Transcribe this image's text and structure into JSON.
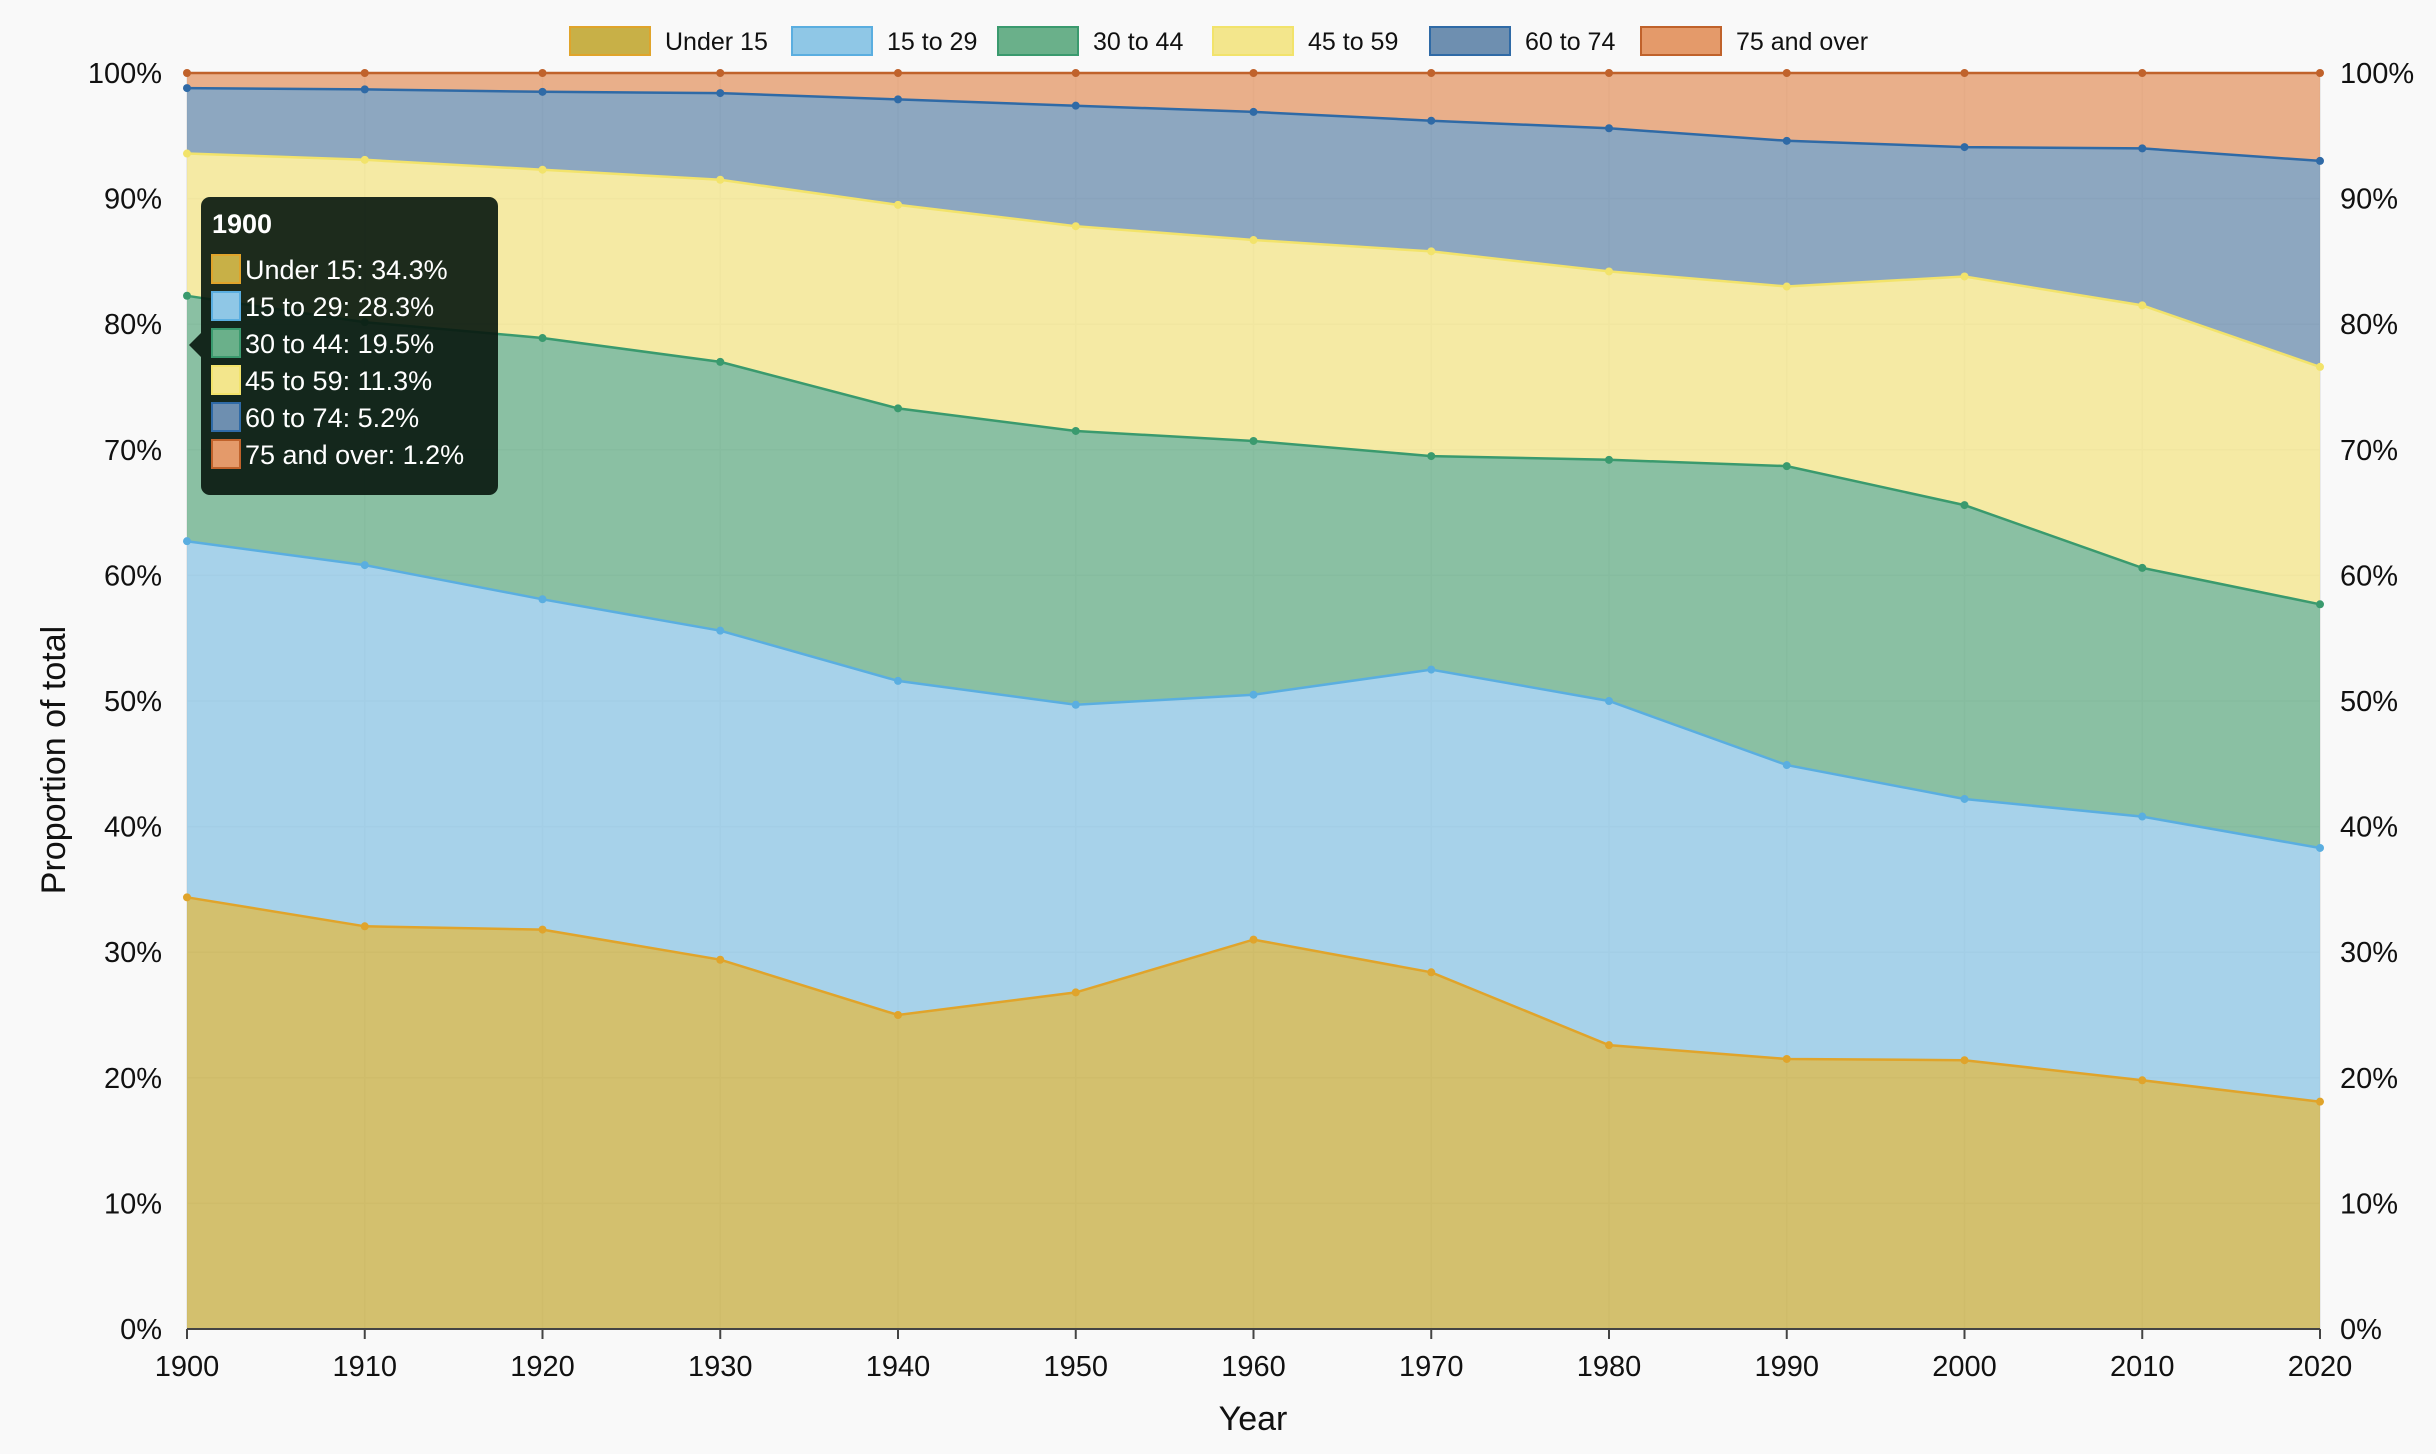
{
  "chart_data": {
    "type": "area",
    "stacked": true,
    "normalized": true,
    "x": [
      1900,
      1910,
      1920,
      1930,
      1940,
      1950,
      1960,
      1970,
      1980,
      1990,
      2000,
      2010,
      2020
    ],
    "series": [
      {
        "name": "Under 15",
        "color": "#e0a42b",
        "fill": "#c8b047",
        "values": [
          34.3,
          32.0,
          31.8,
          29.4,
          25.0,
          26.8,
          31.0,
          28.4,
          22.6,
          21.5,
          21.4,
          19.8,
          18.1
        ]
      },
      {
        "name": "15 to 29",
        "color": "#5aaee0",
        "fill": "#8fc7e6",
        "values": [
          28.3,
          28.7,
          26.3,
          26.2,
          26.6,
          22.9,
          19.5,
          24.1,
          27.4,
          23.4,
          20.8,
          21.0,
          20.2
        ]
      },
      {
        "name": "30 to 44",
        "color": "#3a9a6e",
        "fill": "#6ab08a",
        "values": [
          19.5,
          19.3,
          20.8,
          21.4,
          21.7,
          21.8,
          20.2,
          17.0,
          19.2,
          23.8,
          23.4,
          19.8,
          19.4
        ]
      },
      {
        "name": "45 to 59",
        "color": "#f2e36b",
        "fill": "#f3e68c",
        "values": [
          11.3,
          12.9,
          13.4,
          14.5,
          16.2,
          16.3,
          16.0,
          16.3,
          15.0,
          14.3,
          18.2,
          20.9,
          18.9
        ]
      },
      {
        "name": "60 to 74",
        "color": "#2f6aa6",
        "fill": "#6e8fb0",
        "values": [
          5.2,
          5.6,
          6.2,
          6.9,
          8.4,
          9.6,
          10.2,
          10.4,
          11.4,
          11.6,
          10.3,
          12.5,
          16.4
        ]
      },
      {
        "name": "75 and over",
        "color": "#c0622b",
        "fill": "#e49a6a",
        "values": [
          1.2,
          1.3,
          1.5,
          1.6,
          2.1,
          2.6,
          3.1,
          3.8,
          4.4,
          5.4,
          5.9,
          6.0,
          7.0
        ]
      }
    ],
    "xlabel": "Year",
    "ylabel": "Proportion of total",
    "ylim": [
      0,
      100
    ],
    "y_ticks": [
      "0%",
      "10%",
      "20%",
      "30%",
      "40%",
      "50%",
      "60%",
      "70%",
      "80%",
      "90%",
      "100%"
    ],
    "grid": true,
    "legend_position": "top",
    "tooltip": {
      "title": "1900",
      "lines": [
        "Under 15: 34.3%",
        "15 to 29: 28.3%",
        "30 to 44: 19.5%",
        "45 to 59: 11.3%",
        "60 to 74: 5.2%",
        "75 and over: 1.2%"
      ]
    }
  }
}
